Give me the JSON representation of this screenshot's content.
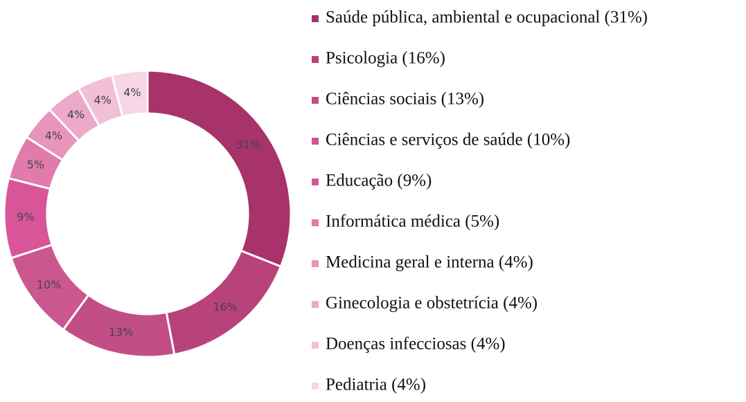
{
  "chart_data": {
    "type": "donut",
    "categories": [
      "Saúde pública, ambiental e ocupacional (31%)",
      "Psicologia (16%)",
      "Ciências sociais (13%)",
      "Ciências e serviços de saúde (10%)",
      "Educação (9%)",
      "Informática médica (5%)",
      "Medicina geral e interna (4%)",
      "Ginecologia e obstetrícia (4%)",
      "Doenças infecciosas (4%)",
      "Pediatria (4%)"
    ],
    "values": [
      31,
      16,
      13,
      10,
      9,
      5,
      4,
      4,
      4,
      4
    ],
    "value_labels": [
      "31%",
      "16%",
      "13%",
      "10%",
      "9%",
      "5%",
      "4%",
      "4%",
      "4%",
      "4%"
    ],
    "colors": [
      "#a8336b",
      "#b8437b",
      "#c24e86",
      "#cb5790",
      "#d85698",
      "#e27aab",
      "#e895bc",
      "#eca9c9",
      "#f1bfd6",
      "#f6d5e4"
    ],
    "legend": "right"
  }
}
